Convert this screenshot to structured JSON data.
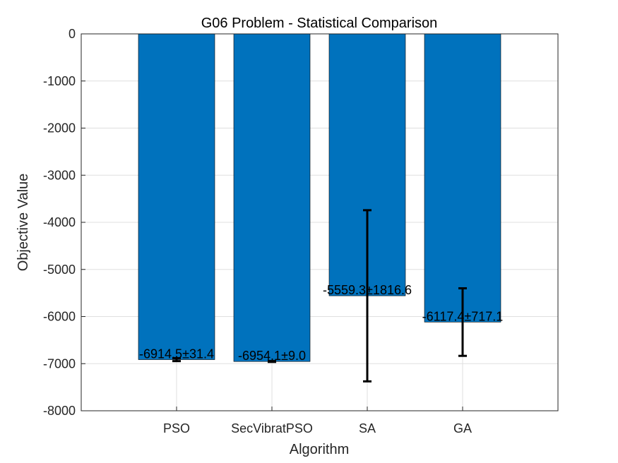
{
  "chart_data": {
    "type": "bar",
    "title": "G06 Problem - Statistical Comparison",
    "xlabel": "Algorithm",
    "ylabel": "Objective Value",
    "categories": [
      "PSO",
      "SecVibratPSO",
      "SA",
      "GA"
    ],
    "series": [
      {
        "values": [
          -6914.5,
          -6954.1,
          -5559.3,
          -6117.4
        ],
        "errors": [
          31.4,
          9.0,
          1816.6,
          717.1
        ],
        "color": "#0072BD"
      }
    ],
    "data_labels": [
      "-6914.5±31.4",
      "-6954.1±9.0",
      "-5559.3±1816.6",
      "-6117.4±717.1"
    ],
    "ylim": [
      -8000,
      0
    ],
    "yticks": [
      0,
      -1000,
      -2000,
      -3000,
      -4000,
      -5000,
      -6000,
      -7000,
      -8000
    ],
    "ytick_labels": [
      "0",
      "-1000",
      "-2000",
      "-3000",
      "-4000",
      "-5000",
      "-6000",
      "-7000",
      "-8000"
    ],
    "xlim": [
      0.0,
      5.0
    ],
    "grid": true,
    "error_bar_color": "#000000"
  }
}
